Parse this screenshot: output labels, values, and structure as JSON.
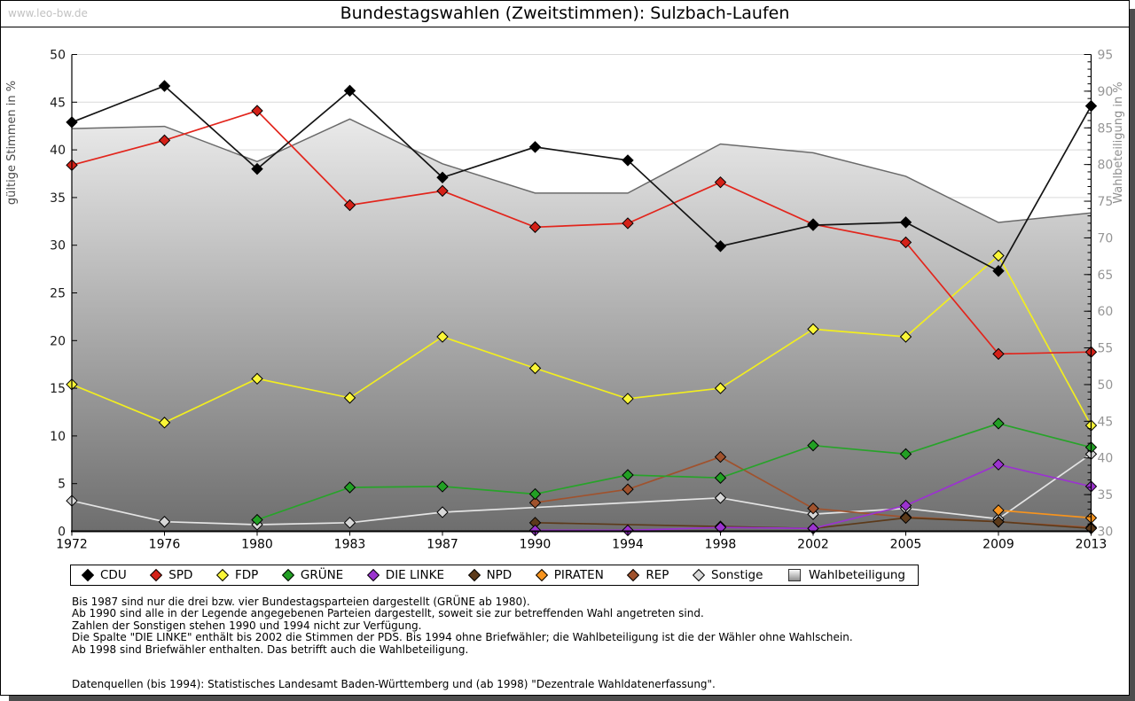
{
  "watermark": "www.leo-bw.de",
  "title": "Bundestagswahlen (Zweitstimmen): Sulzbach-Laufen",
  "chart_data": {
    "type": "line",
    "title": "Bundestagswahlen (Zweitstimmen): Sulzbach-Laufen",
    "categories": [
      "1972",
      "1976",
      "1980",
      "1983",
      "1987",
      "1990",
      "1994",
      "1998",
      "2002",
      "2005",
      "2009",
      "2013"
    ],
    "left_axis": {
      "label": "gültige Stimmen in %",
      "min": 0,
      "max": 50,
      "step": 5
    },
    "right_axis": {
      "label": "Wahlbeteiligung in %",
      "min": 30,
      "max": 95,
      "step": 5,
      "minor_step": 1
    },
    "grid": "horizontal",
    "legend_position": "bottom",
    "series": [
      {
        "name": "CDU",
        "axis": "left",
        "type": "line",
        "color": "#141414",
        "marker_color": "#000000",
        "values": [
          42.9,
          46.7,
          38.0,
          46.2,
          37.1,
          40.3,
          38.9,
          29.9,
          32.1,
          32.4,
          27.3,
          44.6
        ]
      },
      {
        "name": "SPD",
        "axis": "left",
        "type": "line",
        "color": "#e2251c",
        "marker_color": "#d42118",
        "values": [
          38.4,
          41.0,
          44.1,
          34.2,
          35.7,
          31.9,
          32.3,
          36.6,
          32.2,
          30.3,
          18.6,
          18.8
        ]
      },
      {
        "name": "FDP",
        "axis": "left",
        "type": "line",
        "color": "#f2ee1f",
        "marker_color": "#faf637",
        "values": [
          15.4,
          11.4,
          16.0,
          14.0,
          20.4,
          17.1,
          13.9,
          15.0,
          21.2,
          20.4,
          28.9,
          11.1
        ]
      },
      {
        "name": "GRÜNE",
        "axis": "left",
        "type": "line",
        "color": "#28a32a",
        "marker_color": "#22a024",
        "values": [
          null,
          null,
          1.2,
          4.6,
          4.7,
          3.9,
          5.9,
          5.6,
          9.0,
          8.1,
          11.3,
          8.8
        ]
      },
      {
        "name": "DIE LINKE",
        "axis": "left",
        "type": "line",
        "color": "#9b33cf",
        "marker_color": "#9b33cf",
        "values": [
          null,
          null,
          null,
          null,
          null,
          0.1,
          0.1,
          0.4,
          0.3,
          2.7,
          7.0,
          4.7
        ]
      },
      {
        "name": "NPD",
        "axis": "left",
        "type": "line",
        "color": "#5c3a1a",
        "marker_color": "#5c3a1a",
        "values": [
          null,
          null,
          null,
          null,
          null,
          0.9,
          null,
          0.5,
          0.3,
          1.4,
          1.0,
          0.3
        ]
      },
      {
        "name": "PIRATEN",
        "axis": "left",
        "type": "line",
        "color": "#f7941e",
        "marker_color": "#f7941e",
        "values": [
          null,
          null,
          null,
          null,
          null,
          null,
          null,
          null,
          null,
          null,
          2.2,
          1.4
        ]
      },
      {
        "name": "REP",
        "axis": "left",
        "type": "line",
        "color": "#a0522d",
        "marker_color": "#a0522d",
        "values": [
          null,
          null,
          null,
          null,
          null,
          3.0,
          4.4,
          7.8,
          2.4,
          1.5,
          1.0,
          0.4
        ]
      },
      {
        "name": "Sonstige",
        "axis": "left",
        "type": "line",
        "color": "#e4e4e4",
        "marker_color": "#d8d8d8",
        "values": [
          3.2,
          1.0,
          0.7,
          0.9,
          2.0,
          null,
          null,
          3.5,
          1.8,
          2.4,
          1.3,
          8.1
        ]
      },
      {
        "name": "Wahlbeteiligung",
        "axis": "right",
        "type": "area",
        "color": "#6a6a6a",
        "fill_top": "#fdfdfd",
        "fill_bottom": "#6e6e6e",
        "values": [
          84.9,
          85.2,
          80.4,
          86.2,
          80.1,
          76.1,
          76.1,
          82.8,
          81.6,
          78.4,
          72.1,
          73.4
        ]
      }
    ]
  },
  "footnotes": [
    "Bis 1987 sind nur die drei bzw. vier Bundestagsparteien dargestellt (GRÜNE ab 1980).",
    "Ab 1990 sind alle in der Legende angegebenen Parteien dargestellt, soweit sie zur betreffenden Wahl angetreten sind.",
    "Zahlen der Sonstigen stehen 1990 und 1994 nicht zur Verfügung.",
    "Die Spalte \"DIE LINKE\" enthält bis 2002 die Stimmen der PDS. Bis 1994 ohne Briefwähler; die Wahlbeteiligung ist die der Wähler ohne Wahlschein.",
    "Ab 1998 sind Briefwähler enthalten. Das betrifft auch die Wahlbeteiligung."
  ],
  "source_line": "Datenquellen (bis 1994): Statistisches Landesamt Baden-Württemberg und (ab 1998) \"Dezentrale Wahldatenerfassung\"."
}
